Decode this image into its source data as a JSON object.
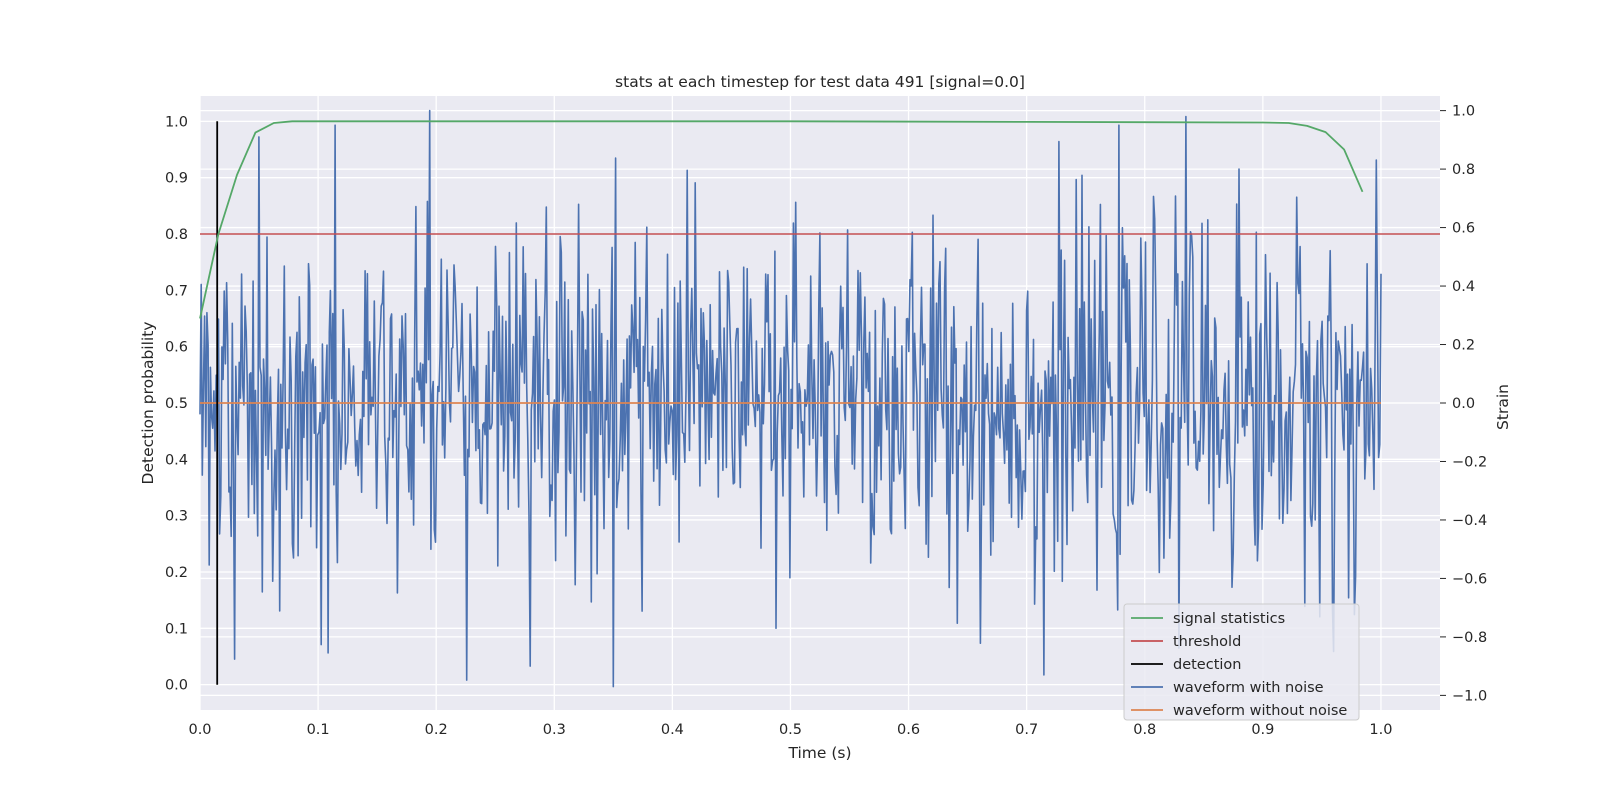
{
  "chart_data": {
    "type": "line",
    "title": "stats at each timestep for test data 491 [signal=0.0]",
    "xlabel": "Time (s)",
    "ylabel": "Detection probability",
    "y2label": "Strain",
    "xlim": [
      0.0,
      1.05
    ],
    "ylim": [
      -0.045,
      1.045
    ],
    "y2lim": [
      -1.05,
      1.05
    ],
    "x_ticks": [
      "0.0",
      "0.1",
      "0.2",
      "0.3",
      "0.4",
      "0.5",
      "0.6",
      "0.7",
      "0.8",
      "0.9",
      "1.0"
    ],
    "x_tick_values": [
      0.0,
      0.1,
      0.2,
      0.3,
      0.4,
      0.5,
      0.6,
      0.7,
      0.8,
      0.9,
      1.0
    ],
    "y_ticks": [
      "0.0",
      "0.1",
      "0.2",
      "0.3",
      "0.4",
      "0.5",
      "0.6",
      "0.7",
      "0.8",
      "0.9",
      "1.0"
    ],
    "y_tick_values": [
      0.0,
      0.1,
      0.2,
      0.3,
      0.4,
      0.5,
      0.6,
      0.7,
      0.8,
      0.9,
      1.0
    ],
    "y2_ticks": [
      "−1.0",
      "−0.8",
      "−0.6",
      "−0.4",
      "−0.2",
      "0.0",
      "0.2",
      "0.4",
      "0.6",
      "0.8",
      "1.0"
    ],
    "y2_tick_values": [
      -1.0,
      -0.8,
      -0.6,
      -0.4,
      -0.2,
      0.0,
      0.2,
      0.4,
      0.6,
      0.8,
      1.0
    ],
    "grid": true,
    "legend_position": "bottom-right",
    "colors": {
      "background": "#eaeaf2",
      "grid": "#ffffff",
      "signal_statistics": "#55a868",
      "threshold": "#c44e52",
      "detection": "#000000",
      "waveform_with_noise": "#4c72b0",
      "waveform_without_noise": "#dd8452"
    },
    "series": [
      {
        "name": "signal statistics",
        "axis": "left",
        "color": "#55a868",
        "x": [
          0.0,
          0.0156,
          0.0313,
          0.0469,
          0.0625,
          0.0781,
          0.1,
          0.3,
          0.5,
          0.7,
          0.9,
          0.9219,
          0.9375,
          0.9531,
          0.9688,
          0.9844
        ],
        "y": [
          0.65,
          0.8,
          0.905,
          0.98,
          0.997,
          1.0,
          1.0,
          1.0,
          1.0,
          0.999,
          0.998,
          0.997,
          0.992,
          0.981,
          0.95,
          0.875
        ]
      },
      {
        "name": "threshold",
        "axis": "left",
        "color": "#c44e52",
        "x": [
          0.0,
          1.05
        ],
        "y": [
          0.8,
          0.8
        ]
      },
      {
        "name": "detection",
        "axis": "left",
        "color": "#000000",
        "x": [
          0.0146,
          0.0146
        ],
        "y": [
          0.0,
          1.0
        ]
      },
      {
        "name": "waveform with noise",
        "axis": "right",
        "color": "#4c72b0",
        "x_start": 0.0,
        "x_end": 1.0,
        "n_points": 1024,
        "seed": 491,
        "sigma": 0.3,
        "peaks": [
          {
            "x": 0.05,
            "y": 0.91
          },
          {
            "x": 0.195,
            "y": 1.0
          },
          {
            "x": 0.35,
            "y": -0.97
          },
          {
            "x": 0.28,
            "y": -0.9
          },
          {
            "x": 0.835,
            "y": 0.98
          },
          {
            "x": 0.715,
            "y": -0.93
          },
          {
            "x": 0.88,
            "y": 0.8
          },
          {
            "x": 0.96,
            "y": -0.85
          }
        ]
      },
      {
        "name": "waveform without noise",
        "axis": "right",
        "color": "#dd8452",
        "x": [
          0.0,
          1.0
        ],
        "y": [
          0.0,
          0.0
        ]
      }
    ]
  }
}
